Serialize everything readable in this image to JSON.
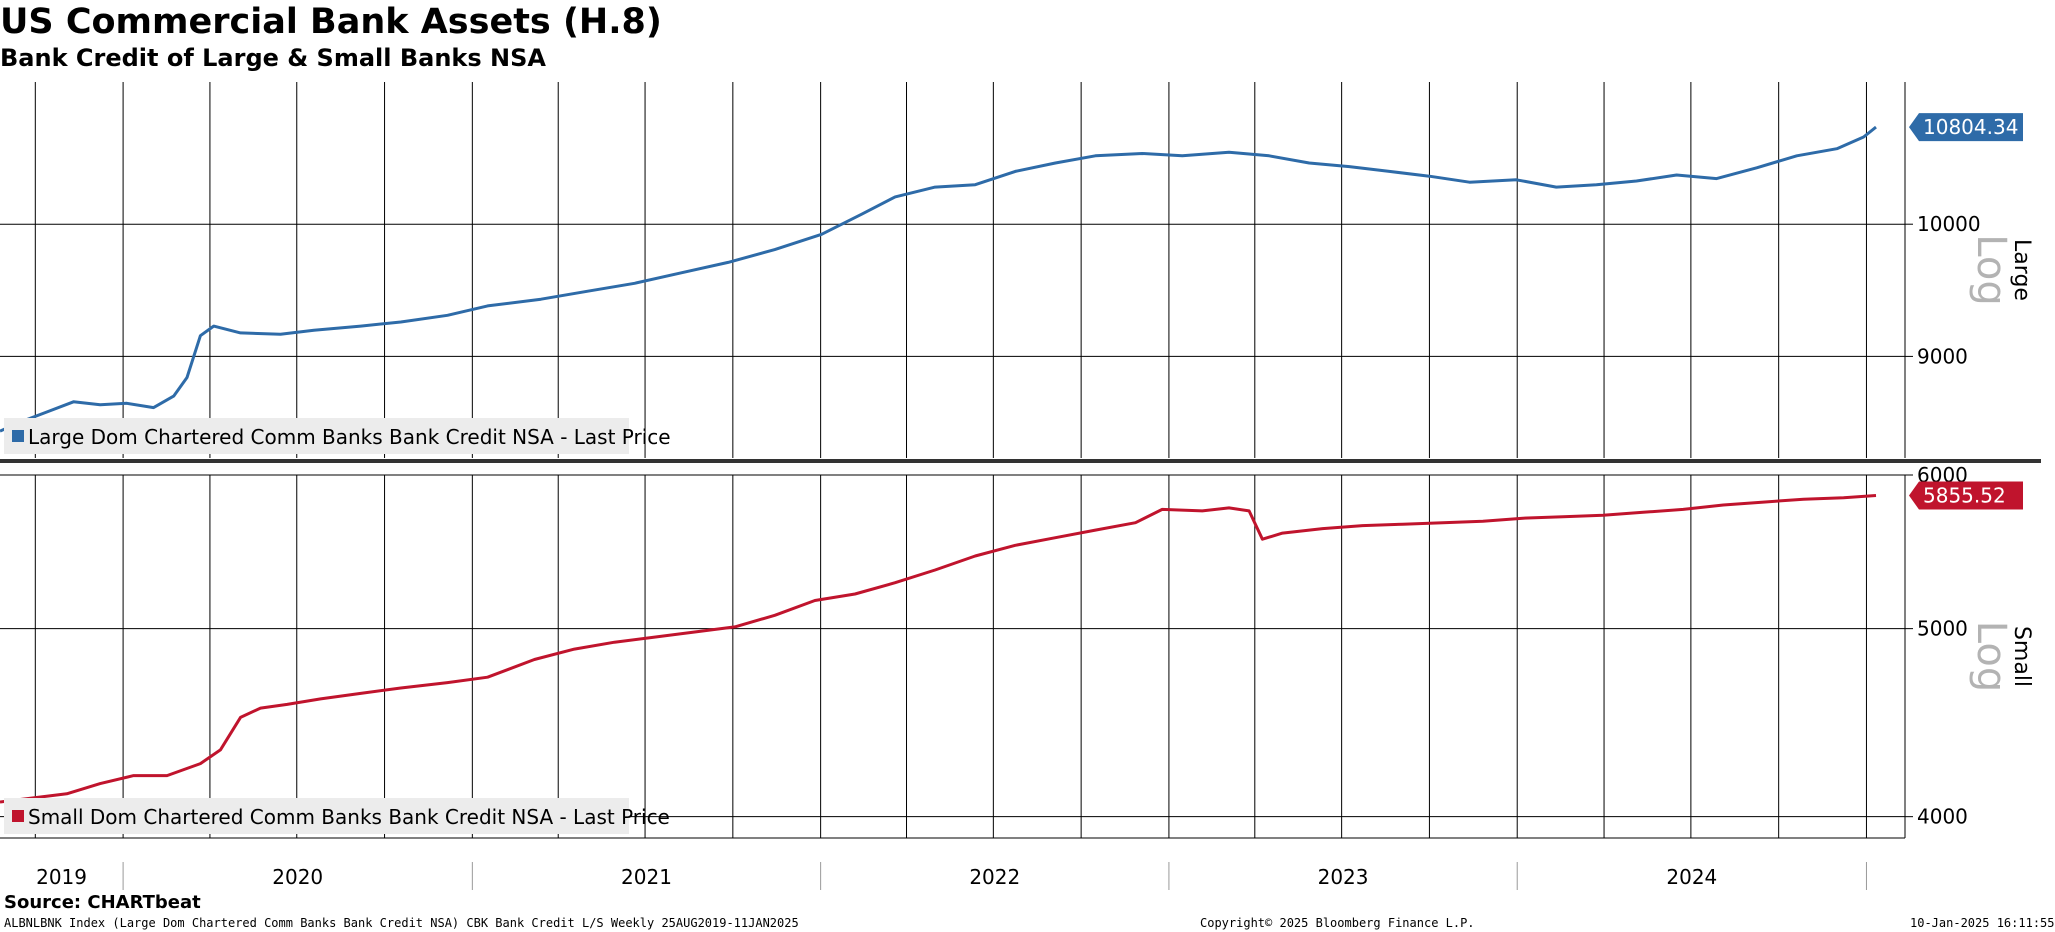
{
  "title": "US Commercial Bank Assets (H.8)",
  "subtitle": "Bank Credit of Large & Small Banks NSA",
  "chart_data": [
    {
      "type": "line",
      "panel": "top",
      "ylabel": "Large",
      "scale": "log",
      "scale_label": "Log",
      "ylim": [
        8300,
        11200
      ],
      "yticks": [
        9000,
        10000
      ],
      "xlim": [
        "2019-08-25",
        "2025-01-11"
      ],
      "legend_position": "bottom-left",
      "grid": true,
      "color": "#2e6ba8",
      "last_value_label": "10804.34",
      "series": [
        {
          "name": "Large Dom Chartered Comm Banks Bank Credit NSA - Last Price",
          "points": [
            [
              "2019-08-25",
              8480
            ],
            [
              "2019-09-15",
              8540
            ],
            [
              "2019-10-13",
              8610
            ],
            [
              "2019-11-10",
              8680
            ],
            [
              "2019-12-08",
              8660
            ],
            [
              "2020-01-05",
              8670
            ],
            [
              "2020-02-02",
              8640
            ],
            [
              "2020-02-23",
              8720
            ],
            [
              "2020-03-08",
              8850
            ],
            [
              "2020-03-22",
              9150
            ],
            [
              "2020-04-05",
              9220
            ],
            [
              "2020-05-03",
              9170
            ],
            [
              "2020-06-14",
              9160
            ],
            [
              "2020-07-19",
              9190
            ],
            [
              "2020-09-06",
              9220
            ],
            [
              "2020-10-18",
              9250
            ],
            [
              "2020-12-06",
              9300
            ],
            [
              "2021-01-17",
              9370
            ],
            [
              "2021-03-14",
              9420
            ],
            [
              "2021-05-02",
              9480
            ],
            [
              "2021-06-20",
              9540
            ],
            [
              "2021-08-08",
              9620
            ],
            [
              "2021-09-26",
              9700
            ],
            [
              "2021-11-14",
              9800
            ],
            [
              "2022-01-02",
              9920
            ],
            [
              "2022-02-13",
              10080
            ],
            [
              "2022-03-20",
              10220
            ],
            [
              "2022-05-01",
              10300
            ],
            [
              "2022-06-12",
              10320
            ],
            [
              "2022-07-24",
              10430
            ],
            [
              "2022-09-04",
              10500
            ],
            [
              "2022-10-16",
              10560
            ],
            [
              "2022-12-04",
              10580
            ],
            [
              "2023-01-15",
              10560
            ],
            [
              "2023-03-05",
              10590
            ],
            [
              "2023-04-16",
              10560
            ],
            [
              "2023-05-28",
              10500
            ],
            [
              "2023-07-09",
              10470
            ],
            [
              "2023-08-20",
              10430
            ],
            [
              "2023-10-01",
              10390
            ],
            [
              "2023-11-12",
              10340
            ],
            [
              "2023-12-31",
              10360
            ],
            [
              "2024-02-11",
              10300
            ],
            [
              "2024-03-24",
              10320
            ],
            [
              "2024-05-05",
              10350
            ],
            [
              "2024-06-16",
              10400
            ],
            [
              "2024-07-28",
              10370
            ],
            [
              "2024-09-08",
              10460
            ],
            [
              "2024-10-20",
              10560
            ],
            [
              "2024-12-01",
              10620
            ],
            [
              "2024-12-29",
              10720
            ],
            [
              "2025-01-11",
              10804.34
            ]
          ]
        }
      ]
    },
    {
      "type": "line",
      "panel": "bottom",
      "ylabel": "Small",
      "scale": "log",
      "scale_label": "Log",
      "ylim": [
        3900,
        6000
      ],
      "yticks": [
        4000,
        5000,
        6000
      ],
      "xlim": [
        "2019-08-25",
        "2025-01-11"
      ],
      "xticks": [
        "2019",
        "2020",
        "2021",
        "2022",
        "2023",
        "2024"
      ],
      "legend_position": "bottom-left",
      "grid": true,
      "color": "#c0142d",
      "last_value_label": "5855.52",
      "series": [
        {
          "name": "Small Dom Chartered Comm Banks Bank Credit NSA - Last Price",
          "points": [
            [
              "2019-08-25",
              4070
            ],
            [
              "2019-09-29",
              4090
            ],
            [
              "2019-11-03",
              4110
            ],
            [
              "2019-12-08",
              4160
            ],
            [
              "2020-01-12",
              4200
            ],
            [
              "2020-02-16",
              4200
            ],
            [
              "2020-03-22",
              4260
            ],
            [
              "2020-04-12",
              4330
            ],
            [
              "2020-05-03",
              4500
            ],
            [
              "2020-05-24",
              4550
            ],
            [
              "2020-06-21",
              4570
            ],
            [
              "2020-07-26",
              4600
            ],
            [
              "2020-09-06",
              4630
            ],
            [
              "2020-10-18",
              4660
            ],
            [
              "2020-12-06",
              4690
            ],
            [
              "2021-01-17",
              4720
            ],
            [
              "2021-03-07",
              4820
            ],
            [
              "2021-04-18",
              4880
            ],
            [
              "2021-05-30",
              4920
            ],
            [
              "2021-07-11",
              4950
            ],
            [
              "2021-08-22",
              4980
            ],
            [
              "2021-10-03",
              5010
            ],
            [
              "2021-11-14",
              5080
            ],
            [
              "2021-12-26",
              5170
            ],
            [
              "2022-02-06",
              5210
            ],
            [
              "2022-03-20",
              5280
            ],
            [
              "2022-05-01",
              5360
            ],
            [
              "2022-06-12",
              5450
            ],
            [
              "2022-07-24",
              5520
            ],
            [
              "2022-09-04",
              5570
            ],
            [
              "2022-10-16",
              5620
            ],
            [
              "2022-11-27",
              5670
            ],
            [
              "2022-12-25",
              5760
            ],
            [
              "2023-02-05",
              5750
            ],
            [
              "2023-03-05",
              5770
            ],
            [
              "2023-03-26",
              5750
            ],
            [
              "2023-04-09",
              5560
            ],
            [
              "2023-04-30",
              5600
            ],
            [
              "2023-06-11",
              5630
            ],
            [
              "2023-07-23",
              5650
            ],
            [
              "2023-09-03",
              5660
            ],
            [
              "2023-10-15",
              5670
            ],
            [
              "2023-11-26",
              5680
            ],
            [
              "2024-01-07",
              5700
            ],
            [
              "2024-02-18",
              5710
            ],
            [
              "2024-03-31",
              5720
            ],
            [
              "2024-05-12",
              5740
            ],
            [
              "2024-06-23",
              5760
            ],
            [
              "2024-08-04",
              5790
            ],
            [
              "2024-09-15",
              5810
            ],
            [
              "2024-10-27",
              5830
            ],
            [
              "2024-12-08",
              5840
            ],
            [
              "2025-01-11",
              5855.52
            ]
          ]
        }
      ]
    }
  ],
  "footer": {
    "source": "Source: CHARTbeat",
    "ticker_line": "ALBNLBNK Index (Large Dom Chartered Comm Banks Bank Credit NSA) CBK Bank Credit L/S  Weekly 25AUG2019-11JAN2025",
    "copyright": "Copyright© 2025 Bloomberg Finance L.P.",
    "timestamp": "10-Jan-2025 16:11:55"
  }
}
